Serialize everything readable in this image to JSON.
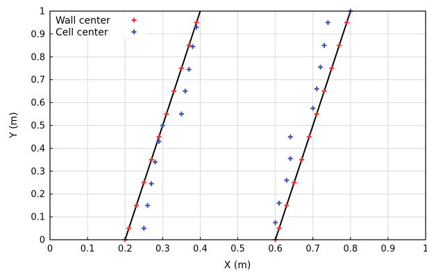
{
  "chart_data": {
    "type": "scatter",
    "title": "",
    "xlabel": "X (m)",
    "ylabel": "Y (m)",
    "xlim": [
      0,
      1
    ],
    "ylim": [
      0,
      1
    ],
    "xticks": [
      "0",
      "0.1",
      "0.2",
      "0.3",
      "0.4",
      "0.5",
      "0.6",
      "0.7",
      "0.8",
      "0.9",
      "1"
    ],
    "yticks": [
      "0",
      "0.1",
      "0.2",
      "0.3",
      "0.4",
      "0.5",
      "0.6",
      "0.7",
      "0.8",
      "0.9",
      "1"
    ],
    "grid": true,
    "legend_position": "top-left",
    "lines": [
      {
        "x": [
          0.2,
          0.4
        ],
        "y": [
          0,
          1
        ],
        "color": "#000000"
      },
      {
        "x": [
          0.6,
          0.8
        ],
        "y": [
          0,
          1
        ],
        "color": "#000000"
      }
    ],
    "series": [
      {
        "name": "Wall center",
        "marker": "+",
        "color": "#e8312a",
        "x": [
          0.2,
          0.21,
          0.23,
          0.25,
          0.27,
          0.29,
          0.31,
          0.33,
          0.35,
          0.37,
          0.39,
          0.6,
          0.61,
          0.63,
          0.65,
          0.67,
          0.69,
          0.71,
          0.73,
          0.75,
          0.77,
          0.79
        ],
        "y": [
          0.0,
          0.05,
          0.15,
          0.25,
          0.35,
          0.45,
          0.55,
          0.65,
          0.75,
          0.85,
          0.95,
          0.0,
          0.05,
          0.15,
          0.25,
          0.35,
          0.45,
          0.55,
          0.65,
          0.75,
          0.85,
          0.95
        ]
      },
      {
        "name": "Cell center",
        "marker": "+",
        "color": "#3a4db0",
        "x": [
          0.25,
          0.26,
          0.27,
          0.28,
          0.29,
          0.3,
          0.35,
          0.36,
          0.37,
          0.38,
          0.39,
          0.6,
          0.61,
          0.63,
          0.64,
          0.64,
          0.7,
          0.71,
          0.72,
          0.73,
          0.74,
          0.8
        ],
        "y": [
          0.05,
          0.15,
          0.245,
          0.34,
          0.43,
          0.5,
          0.55,
          0.65,
          0.745,
          0.845,
          0.93,
          0.075,
          0.16,
          0.26,
          0.355,
          0.45,
          0.575,
          0.66,
          0.755,
          0.85,
          0.95,
          1.0
        ]
      }
    ]
  }
}
